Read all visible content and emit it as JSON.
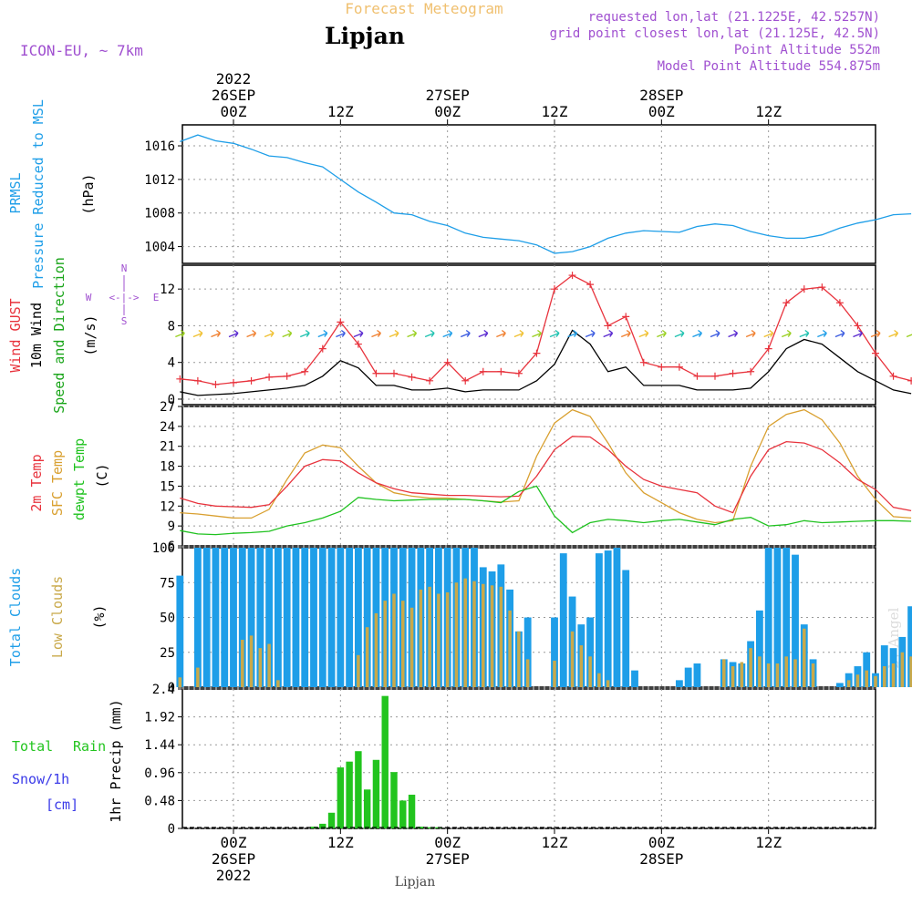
{
  "header": {
    "banner": "Forecast Meteogram",
    "location": "Lipjan",
    "model": "ICON-EU, ~ 7km",
    "info": [
      "requested lon,lat (21.1225E, 42.5257N)",
      "grid point closest lon,lat (21.125E, 42.5N)",
      "Point Altitude 552m",
      "Model Point Altitude 554.875m"
    ],
    "footer_location": "Lipjan",
    "watermark": "by Angel"
  },
  "colors": {
    "pressure": "#1e9ee8",
    "gust": "#e8333d",
    "wind": "#000000",
    "dir_label": "#1aa51a",
    "temp": "#e8333d",
    "sfc": "#d9a030",
    "dewpt": "#1fc21f",
    "total_clouds": "#1e9ee8",
    "low_clouds": "#c9a94a",
    "rain": "#22c41e",
    "snow": "#3a3ae8",
    "info": "#a050d0",
    "banner": "#f0c070"
  },
  "top_axis": {
    "ticks": [
      "00Z",
      "12Z",
      "00Z",
      "12Z",
      "00Z",
      "12Z"
    ],
    "dates": [
      {
        "day": "26SEP",
        "year": "2022"
      },
      {
        "day": "27SEP",
        "year": ""
      },
      {
        "day": "28SEP",
        "year": ""
      }
    ]
  },
  "bottom_axis": {
    "ticks": [
      "00Z",
      "12Z",
      "00Z",
      "12Z",
      "00Z",
      "12Z"
    ],
    "dates": [
      {
        "day": "26SEP",
        "year": "2022"
      },
      {
        "day": "27SEP",
        "year": ""
      },
      {
        "day": "28SEP",
        "year": ""
      }
    ]
  },
  "panel_labels": {
    "pressure": {
      "name1": "PRMSL",
      "name2": "Pressure Reduced to MSL",
      "unit": "(hPa)"
    },
    "wind": {
      "gust": "Wind GUST",
      "wind": "10m Wind",
      "dir": "Speed and Direction",
      "unit": "(m/s)",
      "compass_n": "N",
      "compass_s": "S",
      "compass_w": "W",
      "compass_e": "E",
      "compass_arrows": "<-|->"
    },
    "temp": {
      "t2m": "2m Temp",
      "sfc": "SFC Temp",
      "dew": "dewpt Temp",
      "unit": "(C)"
    },
    "clouds": {
      "total": "Total Clouds",
      "low": "Low Clouds",
      "unit": "(%)"
    },
    "precip": {
      "rain_a": "Total",
      "rain_b": "Rain",
      "snow": "Snow/1h",
      "snow_unit": "[cm]",
      "axis": "1hr Precip (mm)"
    }
  },
  "chart_data": [
    {
      "id": "pressure",
      "type": "line",
      "x_unit": "hours since 26SEP 00Z",
      "ylim": [
        1002,
        1018.5
      ],
      "yticks": [
        "1004",
        "1008",
        "1012",
        "1016"
      ],
      "series": [
        {
          "name": "PRMSL",
          "x": [
            -6,
            -4,
            -2,
            0,
            2,
            4,
            6,
            8,
            10,
            12,
            14,
            16,
            18,
            20,
            22,
            24,
            26,
            28,
            30,
            32,
            34,
            36,
            38,
            40,
            42,
            44,
            46,
            48,
            50,
            52,
            54,
            56,
            58,
            60,
            62,
            64,
            66,
            68,
            70,
            72,
            74,
            76
          ],
          "values": [
            1016.5,
            1017.3,
            1016.6,
            1016.3,
            1015.6,
            1014.8,
            1014.6,
            1014.0,
            1013.5,
            1012.0,
            1010.5,
            1009.3,
            1008.0,
            1007.8,
            1007.0,
            1006.5,
            1005.6,
            1005.1,
            1004.9,
            1004.7,
            1004.2,
            1003.2,
            1003.4,
            1004.0,
            1005.0,
            1005.6,
            1005.9,
            1005.8,
            1005.7,
            1006.4,
            1006.7,
            1006.5,
            1005.8,
            1005.3,
            1005.0,
            1005.0,
            1005.4,
            1006.2,
            1006.8,
            1007.2,
            1007.8,
            1007.9
          ]
        }
      ]
    },
    {
      "id": "wind",
      "type": "line",
      "x_unit": "hours since 26SEP 00Z",
      "ylim": [
        -0.6,
        14.6
      ],
      "yticks": [
        "0",
        "4",
        "8",
        "12"
      ],
      "series": [
        {
          "name": "Wind GUST",
          "x": [
            -6,
            -4,
            -2,
            0,
            2,
            4,
            6,
            8,
            10,
            12,
            14,
            16,
            18,
            20,
            22,
            24,
            26,
            28,
            30,
            32,
            34,
            36,
            38,
            40,
            42,
            44,
            46,
            48,
            50,
            52,
            54,
            56,
            58,
            60,
            62,
            64,
            66,
            68,
            70,
            72,
            74,
            76
          ],
          "values": [
            2.2,
            2.0,
            1.6,
            1.8,
            2.0,
            2.4,
            2.5,
            3.0,
            5.5,
            8.4,
            6.0,
            2.8,
            2.8,
            2.4,
            2.0,
            4.0,
            2.0,
            3.0,
            3.0,
            2.8,
            5.0,
            12.0,
            13.5,
            12.5,
            8.0,
            9.0,
            4.0,
            3.5,
            3.5,
            2.5,
            2.5,
            2.8,
            3.0,
            5.5,
            10.5,
            12.0,
            12.2,
            10.5,
            8.0,
            5.0,
            2.5,
            2.0
          ]
        },
        {
          "name": "10m Wind",
          "x": [
            -6,
            -4,
            -2,
            0,
            2,
            4,
            6,
            8,
            10,
            12,
            14,
            16,
            18,
            20,
            22,
            24,
            26,
            28,
            30,
            32,
            34,
            36,
            38,
            40,
            42,
            44,
            46,
            48,
            50,
            52,
            54,
            56,
            58,
            60,
            62,
            64,
            66,
            68,
            70,
            72,
            74,
            76
          ],
          "values": [
            0.8,
            0.4,
            0.5,
            0.6,
            0.8,
            1.0,
            1.2,
            1.5,
            2.5,
            4.2,
            3.4,
            1.5,
            1.5,
            1.0,
            1.0,
            1.2,
            0.8,
            1.0,
            1.0,
            1.0,
            2.0,
            3.8,
            7.5,
            6.0,
            3.0,
            3.5,
            1.5,
            1.5,
            1.5,
            1.0,
            1.0,
            1.0,
            1.2,
            3.0,
            5.5,
            6.5,
            6.0,
            4.5,
            3.0,
            2.0,
            1.0,
            0.6
          ]
        }
      ]
    },
    {
      "id": "temperature",
      "type": "line",
      "x_unit": "hours since 26SEP 00Z",
      "ylim": [
        6,
        27
      ],
      "yticks": [
        "6",
        "9",
        "12",
        "15",
        "18",
        "21",
        "24",
        "27"
      ],
      "series": [
        {
          "name": "2m Temp",
          "x": [
            -6,
            -4,
            -2,
            0,
            2,
            4,
            6,
            8,
            10,
            12,
            14,
            16,
            18,
            20,
            22,
            24,
            26,
            28,
            30,
            32,
            34,
            36,
            38,
            40,
            42,
            44,
            46,
            48,
            50,
            52,
            54,
            56,
            58,
            60,
            62,
            64,
            66,
            68,
            70,
            72,
            74,
            76
          ],
          "values": [
            13.2,
            12.4,
            12.0,
            11.9,
            11.8,
            12.2,
            15.0,
            18.0,
            19.0,
            18.8,
            17.0,
            15.5,
            14.6,
            14.0,
            13.8,
            13.6,
            13.6,
            13.5,
            13.4,
            13.5,
            16.5,
            20.5,
            22.5,
            22.4,
            20.5,
            18.0,
            16.0,
            15.0,
            14.5,
            14.0,
            12.0,
            11.0,
            16.5,
            20.5,
            21.7,
            21.5,
            20.5,
            18.5,
            16.0,
            14.5,
            11.8,
            11.3
          ]
        },
        {
          "name": "SFC Temp",
          "x": [
            -6,
            -4,
            -2,
            0,
            2,
            4,
            6,
            8,
            10,
            12,
            14,
            16,
            18,
            20,
            22,
            24,
            26,
            28,
            30,
            32,
            34,
            36,
            38,
            40,
            42,
            44,
            46,
            48,
            50,
            52,
            54,
            56,
            58,
            60,
            62,
            64,
            66,
            68,
            70,
            72,
            74,
            76
          ],
          "values": [
            11.0,
            10.8,
            10.5,
            10.2,
            10.2,
            11.5,
            16.0,
            20.0,
            21.2,
            20.8,
            18.0,
            15.5,
            14.0,
            13.5,
            13.2,
            13.2,
            13.0,
            12.8,
            12.6,
            12.8,
            19.5,
            24.5,
            26.5,
            25.5,
            21.5,
            17.0,
            14.0,
            12.5,
            11.0,
            10.0,
            9.5,
            9.8,
            18.0,
            24.0,
            25.8,
            26.5,
            25.0,
            21.5,
            16.5,
            13.0,
            10.4,
            10.2
          ]
        },
        {
          "name": "dewpt Temp",
          "x": [
            -6,
            -4,
            -2,
            0,
            2,
            4,
            6,
            8,
            10,
            12,
            14,
            16,
            18,
            20,
            22,
            24,
            26,
            28,
            30,
            32,
            34,
            36,
            38,
            40,
            42,
            44,
            46,
            48,
            50,
            52,
            54,
            56,
            58,
            60,
            62,
            64,
            66,
            68,
            70,
            72,
            74,
            76
          ],
          "values": [
            8.3,
            7.8,
            7.7,
            7.9,
            8.0,
            8.2,
            9.0,
            9.5,
            10.2,
            11.2,
            13.3,
            13.0,
            12.8,
            12.9,
            13.0,
            13.0,
            13.0,
            12.8,
            12.5,
            14.2,
            15.0,
            10.5,
            8.0,
            9.5,
            10.0,
            9.8,
            9.5,
            9.8,
            10.0,
            9.6,
            9.2,
            10.0,
            10.3,
            9.0,
            9.2,
            9.8,
            9.5,
            9.6,
            9.7,
            9.8,
            9.8,
            9.7
          ]
        }
      ]
    },
    {
      "id": "clouds",
      "type": "bar",
      "x_unit": "hours since 26SEP 00Z",
      "ylim": [
        0,
        100
      ],
      "yticks": [
        "0",
        "25",
        "50",
        "75",
        "100"
      ],
      "x": [
        -6,
        -5,
        -4,
        -3,
        -2,
        -1,
        0,
        1,
        2,
        3,
        4,
        5,
        6,
        7,
        8,
        9,
        10,
        11,
        12,
        13,
        14,
        15,
        16,
        17,
        18,
        19,
        20,
        21,
        22,
        23,
        24,
        25,
        26,
        27,
        28,
        29,
        30,
        31,
        32,
        33,
        34,
        35,
        36,
        37,
        38,
        39,
        40,
        41,
        42,
        43,
        44,
        45,
        46,
        47,
        48,
        49,
        50,
        51,
        52,
        53,
        54,
        55,
        56,
        57,
        58,
        59,
        60,
        61,
        62,
        63,
        64,
        65,
        66,
        67,
        68,
        69,
        70,
        71,
        72,
        73,
        74,
        75,
        76
      ],
      "series": [
        {
          "name": "Total Clouds",
          "values": [
            80,
            0,
            100,
            100,
            100,
            100,
            100,
            100,
            100,
            100,
            100,
            100,
            100,
            100,
            100,
            100,
            100,
            100,
            100,
            100,
            100,
            100,
            100,
            100,
            100,
            100,
            100,
            100,
            100,
            100,
            100,
            100,
            100,
            100,
            86,
            83,
            88,
            70,
            40,
            50,
            0,
            0,
            50,
            96,
            65,
            45,
            50,
            96,
            98,
            100,
            84,
            12,
            0,
            0,
            0,
            0,
            5,
            14,
            17,
            0,
            0,
            20,
            18,
            17,
            33,
            55,
            100,
            100,
            100,
            95,
            45,
            20,
            0,
            0,
            3,
            10,
            15,
            25,
            10,
            30,
            28,
            36,
            58
          ]
        },
        {
          "name": "Low Clouds",
          "values": [
            7,
            0,
            14,
            0,
            0,
            0,
            0,
            34,
            37,
            28,
            31,
            5,
            0,
            0,
            0,
            0,
            0,
            0,
            0,
            0,
            23,
            43,
            53,
            62,
            67,
            62,
            57,
            70,
            72,
            67,
            68,
            75,
            78,
            76,
            74,
            73,
            72,
            55,
            40,
            20,
            0,
            0,
            19,
            0,
            40,
            30,
            22,
            10,
            5,
            0,
            0,
            0,
            0,
            0,
            0,
            0,
            0,
            0,
            0,
            0,
            0,
            20,
            15,
            18,
            28,
            22,
            17,
            17,
            22,
            20,
            42,
            17,
            0,
            0,
            0,
            5,
            9,
            12,
            8,
            15,
            17,
            25,
            22
          ]
        }
      ]
    },
    {
      "id": "precip",
      "type": "bar",
      "x_unit": "hours since 26SEP 00Z",
      "ylim": [
        0,
        2.4
      ],
      "yticks": [
        "0",
        "0.48",
        "0.96",
        "1.44",
        "1.92",
        "2.4"
      ],
      "x": [
        9,
        10,
        11,
        12,
        13,
        14,
        15,
        16,
        17,
        18,
        19,
        20,
        21,
        22,
        23
      ],
      "series": [
        {
          "name": "Total Rain",
          "values": [
            0.03,
            0.08,
            0.27,
            1.05,
            1.15,
            1.33,
            0.67,
            1.18,
            2.28,
            0.97,
            0.48,
            0.58,
            0.03,
            0.02,
            0.02
          ]
        }
      ]
    }
  ]
}
